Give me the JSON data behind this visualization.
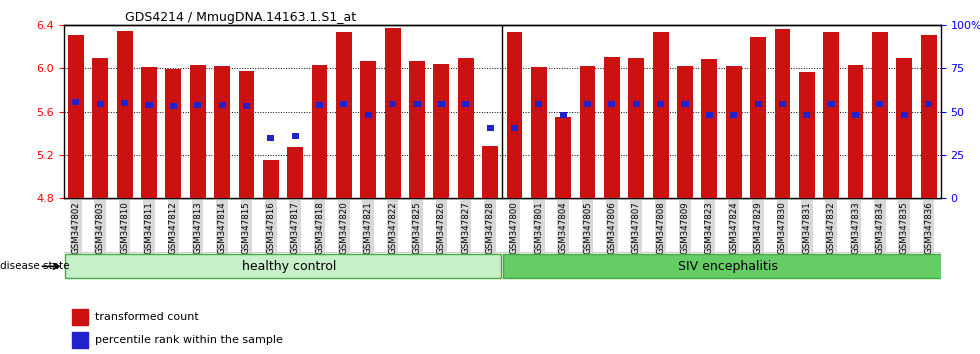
{
  "title": "GDS4214 / MmugDNA.14163.1.S1_at",
  "samples": [
    "GSM347802",
    "GSM347803",
    "GSM347810",
    "GSM347811",
    "GSM347812",
    "GSM347813",
    "GSM347814",
    "GSM347815",
    "GSM347816",
    "GSM347817",
    "GSM347818",
    "GSM347820",
    "GSM347821",
    "GSM347822",
    "GSM347825",
    "GSM347826",
    "GSM347827",
    "GSM347828",
    "GSM347800",
    "GSM347801",
    "GSM347804",
    "GSM347805",
    "GSM347806",
    "GSM347807",
    "GSM347808",
    "GSM347809",
    "GSM347823",
    "GSM347824",
    "GSM347829",
    "GSM347830",
    "GSM347831",
    "GSM347832",
    "GSM347833",
    "GSM347834",
    "GSM347835",
    "GSM347836"
  ],
  "bar_values": [
    6.31,
    6.09,
    6.34,
    6.01,
    5.99,
    6.03,
    6.02,
    5.97,
    5.15,
    5.27,
    6.03,
    6.33,
    6.07,
    6.37,
    6.07,
    6.04,
    6.09,
    5.28,
    6.33,
    6.01,
    5.55,
    6.02,
    6.1,
    6.09,
    6.33,
    6.02,
    6.08,
    6.02,
    6.29,
    6.36,
    5.96,
    6.33,
    6.03,
    6.33,
    6.09,
    6.31
  ],
  "blue_dot_values": [
    5.69,
    5.67,
    5.68,
    5.66,
    5.65,
    5.66,
    5.66,
    5.65,
    5.36,
    5.37,
    5.66,
    5.67,
    5.57,
    5.67,
    5.67,
    5.67,
    5.67,
    5.45,
    5.45,
    5.67,
    5.57,
    5.67,
    5.67,
    5.67,
    5.67,
    5.67,
    5.57,
    5.57,
    5.67,
    5.67,
    5.57,
    5.67,
    5.57,
    5.67,
    5.57,
    5.67
  ],
  "ylim_left": [
    4.8,
    6.4
  ],
  "yticks_left": [
    4.8,
    5.2,
    5.6,
    6.0,
    6.4
  ],
  "yticks_right": [
    0,
    25,
    50,
    75,
    100
  ],
  "bar_color": "#cc1111",
  "dot_color": "#2222cc",
  "healthy_count": 18,
  "group1_label": "healthy control",
  "group2_label": "SIV encephalitis",
  "disease_state_label": "disease state",
  "legend1": "transformed count",
  "legend2": "percentile rank within the sample",
  "group1_color": "#c8f0c8",
  "group2_color": "#66cc66",
  "tick_bg_color": "#d8d8d8"
}
